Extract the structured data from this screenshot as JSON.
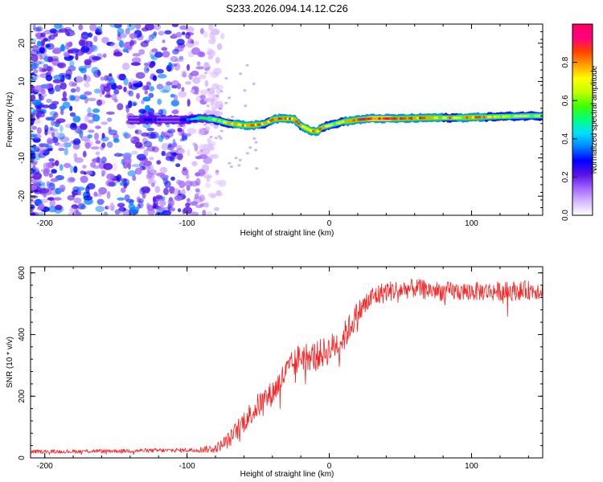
{
  "figure_title": "S233.2026.094.14.12.C26",
  "chart_data": [
    {
      "type": "heatmap",
      "title": "S233.2026.094.14.12.C26",
      "xlabel": "Height of straight line (km)",
      "ylabel": "Frequency (Hz)",
      "xlim": [
        -210,
        150
      ],
      "ylim": [
        -25,
        25
      ],
      "xticks": [
        -200,
        -100,
        0,
        100
      ],
      "yticks": [
        -20,
        -10,
        0,
        10,
        20
      ],
      "xtick_labels": [
        "-200",
        "-100",
        "0",
        "100"
      ],
      "ytick_labels": [
        "-20",
        "-10",
        "0",
        "10",
        "20"
      ],
      "colorbar": {
        "label": "Normalized spectral amplitude",
        "range": [
          0,
          1
        ],
        "ticks": [
          "0.0",
          "0.2",
          "0.4",
          "0.6",
          "0.8"
        ],
        "tick_values": [
          0,
          0.2,
          0.4,
          0.6,
          0.8
        ],
        "colors": [
          "#ffffff",
          "#d9b8ff",
          "#a064ff",
          "#5a10e6",
          "#0000ff",
          "#0080ff",
          "#00e0ff",
          "#00ff80",
          "#40ff00",
          "#c0ff00",
          "#ffff00",
          "#ffa000",
          "#ff4000",
          "#ff0080",
          "#ff0060"
        ]
      },
      "noise_region_x": [
        -210,
        -85
      ],
      "ridge_line": {
        "x": [
          -140,
          -125,
          -110,
          -100,
          -90,
          -80,
          -75,
          -70,
          -65,
          -60,
          -55,
          -50,
          -45,
          -40,
          -35,
          -30,
          -25,
          -20,
          -15,
          -12,
          -8,
          -5,
          0,
          5,
          10,
          15,
          20,
          30,
          40,
          50,
          60,
          70,
          80,
          90,
          100,
          110,
          120,
          130,
          140,
          150
        ],
        "y": [
          0,
          0,
          0,
          0,
          0.5,
          0,
          -0.5,
          -1,
          -1.2,
          -1.5,
          -1.5,
          -1.3,
          -1,
          0,
          0.3,
          0.3,
          0.2,
          -1.5,
          -2.5,
          -3,
          -3,
          -2,
          -1.5,
          -1,
          -0.5,
          -0.3,
          0,
          0.3,
          0.3,
          0.3,
          0.4,
          0.5,
          0.5,
          0.5,
          0.6,
          0.7,
          0.8,
          0.9,
          1,
          1
        ],
        "amplitude": [
          0.25,
          0.3,
          0.2,
          0.35,
          0.55,
          0.65,
          0.7,
          0.75,
          0.85,
          0.8,
          0.85,
          0.85,
          0.75,
          0.85,
          0.9,
          0.9,
          0.85,
          0.8,
          0.85,
          0.9,
          0.85,
          0.8,
          0.7,
          0.7,
          0.8,
          0.85,
          0.9,
          0.95,
          0.95,
          0.9,
          0.9,
          0.85,
          0.8,
          0.8,
          0.85,
          0.8,
          0.75,
          0.7,
          0.7,
          0.7
        ]
      }
    },
    {
      "type": "line",
      "xlabel": "Height of straight line (km)",
      "ylabel": "SNR (10 * v/v)",
      "xlim": [
        -210,
        150
      ],
      "ylim": [
        0,
        620
      ],
      "xticks": [
        -200,
        -100,
        0,
        100
      ],
      "yticks": [
        0,
        200,
        400,
        600
      ],
      "xtick_labels": [
        "-200",
        "-100",
        "0",
        "100"
      ],
      "ytick_labels": [
        "0",
        "200",
        "400",
        "600"
      ],
      "series": [
        {
          "name": "SNR",
          "color": "#ff2020",
          "envelope_x": [
            -210,
            -100,
            -80,
            -70,
            -60,
            -50,
            -40,
            -30,
            -20,
            -10,
            0,
            10,
            20,
            30,
            40,
            60,
            80,
            100,
            120,
            150
          ],
          "envelope_y": [
            20,
            25,
            30,
            60,
            120,
            170,
            210,
            280,
            330,
            330,
            350,
            390,
            470,
            520,
            540,
            550,
            540,
            540,
            540,
            545
          ],
          "noise_amplitude": [
            8,
            10,
            20,
            40,
            55,
            60,
            60,
            65,
            70,
            70,
            70,
            70,
            60,
            55,
            50,
            45,
            45,
            45,
            45,
            45
          ]
        }
      ]
    }
  ]
}
